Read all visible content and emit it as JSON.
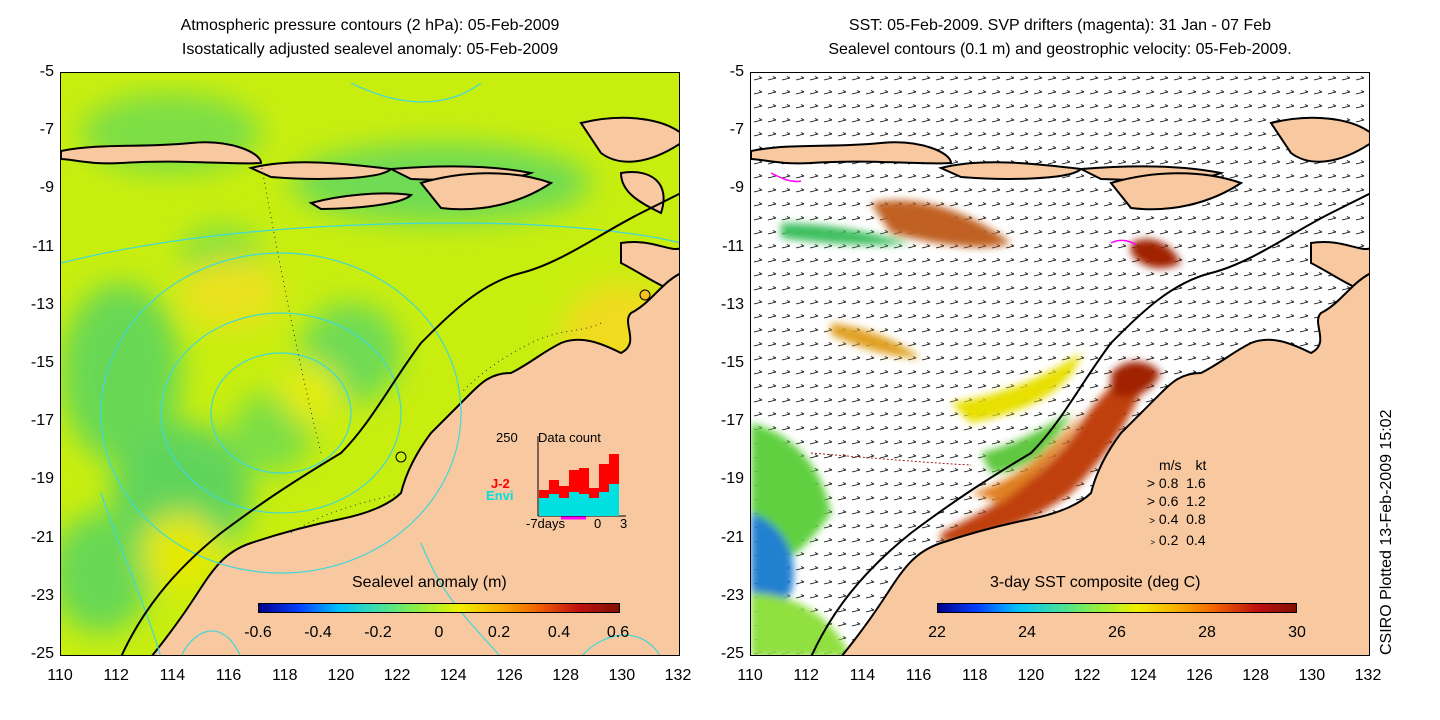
{
  "left_panel": {
    "title_line1": "Atmospheric pressure contours (2 hPa): 05-Feb-2009",
    "title_line2": "Isostatically adjusted sealevel anomaly: 05-Feb-2009",
    "colorbar_title": "Sealevel anomaly (m)",
    "colorbar_ticks": [
      "-0.6",
      "-0.4",
      "-0.2",
      "0",
      "0.2",
      "0.4",
      "0.6"
    ],
    "inset": {
      "count_label": "250",
      "title": "Data count",
      "legend": [
        "J-2",
        "Envi"
      ],
      "x_labels": [
        "-7days",
        "0",
        "3"
      ]
    }
  },
  "right_panel": {
    "title_line1": "SST: 05-Feb-2009. SVP drifters (magenta): 31 Jan - 07 Feb",
    "title_line2": "Sealevel contours (0.1 m) and geostrophic velocity: 05-Feb-2009.",
    "colorbar_title": "3-day SST composite (deg C)",
    "colorbar_ticks": [
      "22",
      "24",
      "26",
      "28",
      "30"
    ],
    "speed_legend": {
      "header_ms": "m/s",
      "header_kt": "kt",
      "rows": [
        {
          "ms": "0.8",
          "kt": "1.6"
        },
        {
          "ms": "0.6",
          "kt": "1.2"
        },
        {
          "ms": "0.4",
          "kt": "0.8"
        },
        {
          "ms": "0.2",
          "kt": "0.4"
        }
      ]
    }
  },
  "y_ticks": [
    "-5",
    "-7",
    "-9",
    "-11",
    "-13",
    "-15",
    "-17",
    "-19",
    "-21",
    "-23",
    "-25"
  ],
  "x_ticks": [
    "110",
    "112",
    "114",
    "116",
    "118",
    "120",
    "122",
    "124",
    "126",
    "128",
    "130",
    "132"
  ],
  "credit": "CSIRO Plotted 13-Feb-2009 15:02",
  "colors": {
    "land": "#f8c8a0",
    "sea_anomaly": "#c8f000",
    "coast": "#000000",
    "contour": "#40d8d8",
    "drifter": "#ff00ff",
    "j2": "#ff0000",
    "envi": "#00e0e0"
  }
}
